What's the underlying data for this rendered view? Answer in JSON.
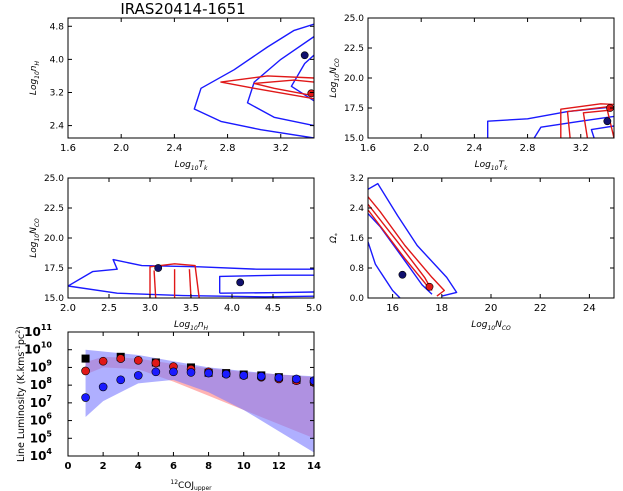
{
  "figure_title": "IRAS20414-1651",
  "colors": {
    "blue": "#1a1aff",
    "red": "#e01818",
    "navy": "#10106e",
    "black": "#000000",
    "blue_band": "#7a7aff",
    "red_band": "#ff9a9a"
  },
  "chart_data": [
    {
      "id": "p1",
      "type": "contour",
      "xlabel_main": "Log",
      "xlabel_sub": "10",
      "xlabel_tail": "T",
      "xlabel_tail_sub": "k",
      "ylabel_main": "Log",
      "ylabel_sub": "10",
      "ylabel_tail": "n",
      "ylabel_tail_sub": "H",
      "xlim": [
        1.6,
        3.45
      ],
      "ylim": [
        2.1,
        5.0
      ],
      "xticks": [
        "1.6",
        "2.0",
        "2.4",
        "2.8",
        "3.2"
      ],
      "xtick_vals": [
        1.6,
        2.0,
        2.4,
        2.8,
        3.2
      ],
      "yticks": [
        "2.4",
        "3.2",
        "4.0",
        "4.8"
      ],
      "ytick_vals": [
        2.4,
        3.2,
        4.0,
        4.8
      ],
      "points": [
        {
          "x": 3.38,
          "y": 4.1,
          "color": "navy"
        },
        {
          "x": 3.43,
          "y": 3.18,
          "color": "red"
        }
      ],
      "contours": [
        {
          "color": "blue",
          "pts": [
            [
              3.45,
              2.1
            ],
            [
              3.05,
              2.3
            ],
            [
              2.75,
              2.5
            ],
            [
              2.55,
              2.8
            ],
            [
              2.6,
              3.3
            ],
            [
              2.85,
              3.75
            ],
            [
              3.1,
              4.3
            ],
            [
              3.3,
              4.7
            ],
            [
              3.45,
              4.85
            ]
          ]
        },
        {
          "color": "blue",
          "pts": [
            [
              3.45,
              2.4
            ],
            [
              3.15,
              2.6
            ],
            [
              2.95,
              2.95
            ],
            [
              3.0,
              3.45
            ],
            [
              3.2,
              4.0
            ],
            [
              3.45,
              4.55
            ]
          ]
        },
        {
          "color": "blue",
          "pts": [
            [
              3.45,
              3.0
            ],
            [
              3.28,
              3.35
            ],
            [
              3.38,
              3.9
            ],
            [
              3.45,
              4.1
            ]
          ]
        },
        {
          "color": "red",
          "pts": [
            [
              3.45,
              3.05
            ],
            [
              3.0,
              3.3
            ],
            [
              2.75,
              3.45
            ],
            [
              3.1,
              3.6
            ],
            [
              3.45,
              3.55
            ]
          ]
        },
        {
          "color": "red",
          "pts": [
            [
              3.45,
              3.12
            ],
            [
              3.15,
              3.3
            ],
            [
              3.0,
              3.42
            ],
            [
              3.3,
              3.5
            ],
            [
              3.45,
              3.45
            ]
          ]
        }
      ]
    },
    {
      "id": "p2",
      "type": "contour",
      "xlabel_main": "Log",
      "xlabel_sub": "10",
      "xlabel_tail": "T",
      "xlabel_tail_sub": "k",
      "ylabel_main": "Log",
      "ylabel_sub": "10",
      "ylabel_tail": "N",
      "ylabel_tail_sub": "CO",
      "xlim": [
        1.6,
        3.45
      ],
      "ylim": [
        15.0,
        25.0
      ],
      "xticks": [
        "1.6",
        "2.0",
        "2.4",
        "2.8",
        "3.2"
      ],
      "xtick_vals": [
        1.6,
        2.0,
        2.4,
        2.8,
        3.2
      ],
      "yticks": [
        "15.0",
        "17.5",
        "20.0",
        "22.5",
        "25.0"
      ],
      "ytick_vals": [
        15.0,
        17.5,
        20.0,
        22.5,
        25.0
      ],
      "points": [
        {
          "x": 3.42,
          "y": 17.5,
          "color": "red"
        },
        {
          "x": 3.4,
          "y": 16.4,
          "color": "navy"
        }
      ],
      "contours": [
        {
          "color": "blue",
          "pts": [
            [
              2.5,
              15.0
            ],
            [
              2.5,
              16.4
            ],
            [
              2.8,
              16.6
            ],
            [
              3.1,
              17.2
            ],
            [
              3.45,
              17.6
            ]
          ]
        },
        {
          "color": "blue",
          "pts": [
            [
              2.85,
              15.0
            ],
            [
              2.9,
              15.9
            ],
            [
              3.2,
              16.4
            ],
            [
              3.45,
              16.8
            ]
          ]
        },
        {
          "color": "blue",
          "pts": [
            [
              3.3,
              15.0
            ],
            [
              3.28,
              15.7
            ],
            [
              3.45,
              16.0
            ]
          ]
        },
        {
          "color": "red",
          "pts": [
            [
              3.05,
              15.0
            ],
            [
              3.05,
              17.4
            ],
            [
              3.35,
              17.85
            ],
            [
              3.45,
              17.8
            ]
          ]
        },
        {
          "color": "red",
          "pts": [
            [
              3.12,
              15.0
            ],
            [
              3.1,
              17.2
            ],
            [
              3.4,
              17.6
            ]
          ]
        },
        {
          "color": "red",
          "pts": [
            [
              3.25,
              15.0
            ],
            [
              3.22,
              17.1
            ],
            [
              3.4,
              17.3
            ],
            [
              3.45,
              15.0
            ]
          ]
        }
      ]
    },
    {
      "id": "p3",
      "type": "contour",
      "xlabel_main": "Log",
      "xlabel_sub": "10",
      "xlabel_tail": "n",
      "xlabel_tail_sub": "H",
      "ylabel_main": "Log",
      "ylabel_sub": "10",
      "ylabel_tail": "N",
      "ylabel_tail_sub": "CO",
      "xlim": [
        2.0,
        5.0
      ],
      "ylim": [
        15.0,
        25.0
      ],
      "xticks": [
        "2.0",
        "2.5",
        "3.0",
        "3.5",
        "4.0",
        "4.5",
        "5.0"
      ],
      "xtick_vals": [
        2.0,
        2.5,
        3.0,
        3.5,
        4.0,
        4.5,
        5.0
      ],
      "yticks": [
        "15.0",
        "17.5",
        "20.0",
        "22.5",
        "25.0"
      ],
      "ytick_vals": [
        15.0,
        17.5,
        20.0,
        22.5,
        25.0
      ],
      "points": [
        {
          "x": 3.1,
          "y": 17.5,
          "color": "navy"
        },
        {
          "x": 4.1,
          "y": 16.3,
          "color": "navy"
        }
      ],
      "contours": [
        {
          "color": "blue",
          "pts": [
            [
              2.0,
              16.0
            ],
            [
              2.3,
              17.2
            ],
            [
              2.6,
              17.4
            ],
            [
              2.55,
              18.2
            ],
            [
              2.9,
              17.7
            ],
            [
              3.6,
              17.6
            ],
            [
              4.3,
              17.4
            ],
            [
              5.0,
              17.4
            ]
          ]
        },
        {
          "color": "blue",
          "pts": [
            [
              2.0,
              16.0
            ],
            [
              2.6,
              15.4
            ],
            [
              3.4,
              15.2
            ],
            [
              4.4,
              15.1
            ],
            [
              5.0,
              15.15
            ]
          ]
        },
        {
          "color": "blue",
          "pts": [
            [
              3.85,
              15.4
            ],
            [
              3.85,
              16.8
            ],
            [
              4.6,
              16.9
            ],
            [
              5.0,
              16.9
            ]
          ]
        },
        {
          "color": "blue",
          "pts": [
            [
              3.85,
              15.4
            ],
            [
              4.6,
              15.45
            ],
            [
              5.0,
              15.5
            ]
          ]
        },
        {
          "color": "red",
          "pts": [
            [
              3.0,
              15.0
            ],
            [
              3.0,
              17.6
            ],
            [
              3.3,
              17.85
            ],
            [
              3.55,
              17.7
            ],
            [
              3.6,
              15.0
            ]
          ]
        },
        {
          "color": "red",
          "pts": [
            [
              3.07,
              15.0
            ],
            [
              3.05,
              17.3
            ]
          ]
        },
        {
          "color": "red",
          "pts": [
            [
              3.3,
              15.0
            ],
            [
              3.3,
              17.4
            ]
          ]
        },
        {
          "color": "red",
          "pts": [
            [
              3.5,
              15.0
            ],
            [
              3.48,
              17.4
            ]
          ]
        }
      ]
    },
    {
      "id": "p4",
      "type": "contour",
      "xlabel_main": "Log",
      "xlabel_sub": "10",
      "xlabel_tail": "N",
      "xlabel_tail_sub": "CO",
      "ylabel_main": "Ω",
      "ylabel_sub": "*",
      "ylabel_tail": "",
      "ylabel_tail_sub": "",
      "xlim": [
        15.0,
        25.0
      ],
      "ylim": [
        0.0,
        3.2
      ],
      "xticks": [
        "16",
        "18",
        "20",
        "22",
        "24"
      ],
      "xtick_vals": [
        16,
        18,
        20,
        22,
        24
      ],
      "yticks": [
        "0.0",
        "0.8",
        "1.6",
        "2.4",
        "3.2"
      ],
      "ytick_vals": [
        0.0,
        0.8,
        1.6,
        2.4,
        3.2
      ],
      "points": [
        {
          "x": 16.4,
          "y": 0.62,
          "color": "navy"
        },
        {
          "x": 17.5,
          "y": 0.3,
          "color": "red"
        }
      ],
      "contours": [
        {
          "color": "blue",
          "pts": [
            [
              15.0,
              1.5
            ],
            [
              15.3,
              0.9
            ],
            [
              16.0,
              0.2
            ],
            [
              16.3,
              0.0
            ]
          ]
        },
        {
          "color": "blue",
          "pts": [
            [
              15.0,
              2.9
            ],
            [
              15.4,
              3.05
            ],
            [
              16.2,
              2.2
            ],
            [
              17.0,
              1.4
            ],
            [
              18.2,
              0.55
            ],
            [
              18.6,
              0.15
            ],
            [
              18.0,
              0.05
            ]
          ]
        },
        {
          "color": "blue",
          "pts": [
            [
              15.0,
              2.25
            ],
            [
              15.5,
              1.9
            ],
            [
              16.6,
              0.9
            ],
            [
              17.2,
              0.35
            ],
            [
              17.6,
              0.1
            ]
          ]
        },
        {
          "color": "red",
          "pts": [
            [
              15.0,
              2.7
            ],
            [
              15.5,
              2.3
            ],
            [
              16.5,
              1.4
            ],
            [
              17.6,
              0.55
            ],
            [
              18.1,
              0.2
            ],
            [
              17.8,
              0.05
            ]
          ]
        },
        {
          "color": "red",
          "pts": [
            [
              15.0,
              2.5
            ],
            [
              16.2,
              1.5
            ],
            [
              17.3,
              0.55
            ],
            [
              17.6,
              0.2
            ]
          ]
        },
        {
          "color": "red",
          "pts": [
            [
              15.0,
              2.35
            ],
            [
              16.5,
              1.05
            ],
            [
              17.5,
              0.25
            ]
          ]
        }
      ]
    },
    {
      "id": "p5",
      "type": "line-bands",
      "xlabel": "COJ",
      "xlabel_sup": "12",
      "xlabel_sub": "upper",
      "ylabel": "Line Luminosity (K.kms",
      "ylabel_sup": "-1",
      "ylabel_mid": "pc",
      "ylabel_sup2": "2",
      "ylabel_end": ")",
      "xlim": [
        0,
        14
      ],
      "ylim_log": [
        4,
        11
      ],
      "xticks": [
        "0",
        "2",
        "4",
        "6",
        "8",
        "10",
        "12",
        "14"
      ],
      "xtick_vals": [
        0,
        2,
        4,
        6,
        8,
        10,
        12,
        14
      ],
      "yticks": [
        "10",
        "10",
        "10",
        "10",
        "10",
        "10",
        "10",
        "10"
      ],
      "ytick_exps": [
        "4",
        "5",
        "6",
        "7",
        "8",
        "9",
        "10",
        "11"
      ],
      "ytick_vals": [
        4,
        5,
        6,
        7,
        8,
        9,
        10,
        11
      ],
      "series": [
        {
          "name": "observed",
          "marker": "square",
          "color": "black",
          "x": [
            1,
            3,
            5,
            7,
            8,
            9,
            10,
            11,
            12,
            13,
            14
          ],
          "log_y": [
            9.5,
            9.6,
            9.28,
            9.0,
            8.7,
            8.68,
            8.6,
            8.55,
            8.45,
            8.3,
            8.2
          ]
        },
        {
          "name": "red-model",
          "marker": "circle",
          "color": "red",
          "x": [
            1,
            2,
            3,
            4,
            5,
            6,
            7,
            8,
            9,
            10,
            11,
            12,
            13,
            14
          ],
          "log_y": [
            8.8,
            9.35,
            9.5,
            9.4,
            9.25,
            9.05,
            8.9,
            8.75,
            8.65,
            8.55,
            8.45,
            8.35,
            8.25,
            8.15
          ]
        },
        {
          "name": "blue-model",
          "marker": "circle",
          "color": "blue",
          "x": [
            1,
            2,
            3,
            4,
            5,
            6,
            7,
            8,
            9,
            10,
            11,
            12,
            13,
            14
          ],
          "log_y": [
            7.3,
            7.9,
            8.3,
            8.55,
            8.75,
            8.75,
            8.72,
            8.68,
            8.62,
            8.55,
            8.5,
            8.42,
            8.35,
            8.25
          ]
        }
      ],
      "bands": [
        {
          "color": "red_band",
          "x": [
            1,
            2,
            4,
            6,
            8,
            10,
            12,
            14
          ],
          "upper": [
            9.3,
            9.6,
            9.5,
            9.2,
            8.95,
            8.75,
            8.6,
            8.45
          ],
          "lower": [
            8.6,
            9.0,
            8.9,
            8.2,
            7.4,
            6.6,
            5.8,
            5.0
          ]
        },
        {
          "color": "blue_band",
          "x": [
            1,
            2,
            4,
            6,
            8,
            10,
            12,
            14
          ],
          "upper": [
            10.0,
            9.9,
            9.7,
            9.35,
            9.0,
            8.8,
            8.6,
            8.5
          ],
          "lower": [
            6.2,
            7.1,
            8.1,
            8.3,
            7.6,
            6.6,
            5.4,
            4.2
          ]
        }
      ]
    }
  ]
}
